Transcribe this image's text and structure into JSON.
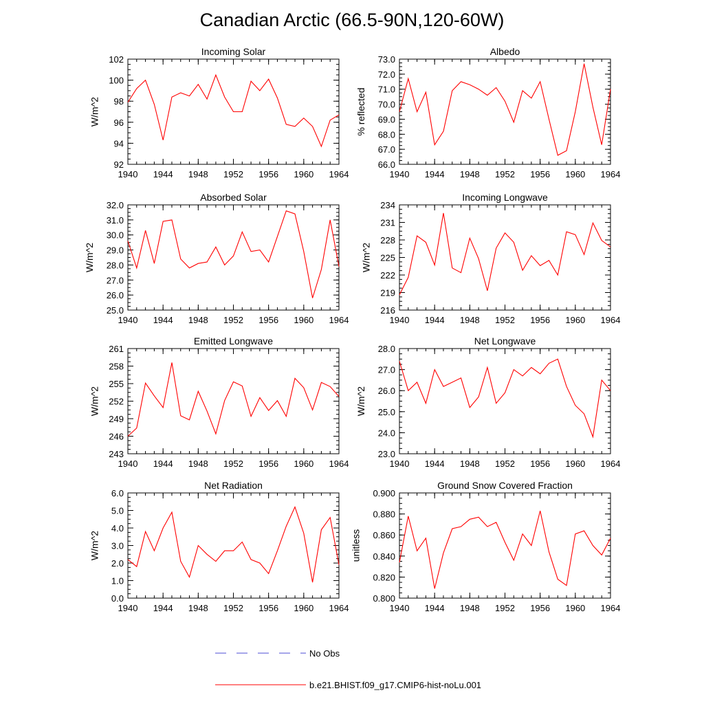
{
  "figure": {
    "title": "Canadian Arctic (66.5-90N,120-60W)"
  },
  "legend": [
    {
      "label": "No Obs",
      "color": "#4b4bd6",
      "style": "dashed"
    },
    {
      "label": "b.e21.BHIST.f09_g17.CMIP6-hist-noLu.001",
      "color": "#ff0000",
      "style": "solid"
    }
  ],
  "chart_data": [
    {
      "type": "line",
      "title": "Incoming Solar",
      "xlabel": "",
      "ylabel": "W/m^2",
      "xlim": [
        1940,
        1964
      ],
      "ylim": [
        92,
        102
      ],
      "xticks": [
        "1940",
        "1944",
        "1948",
        "1952",
        "1956",
        "1960",
        "1964"
      ],
      "yticks": [
        "92",
        "94",
        "96",
        "98",
        "100",
        "102"
      ],
      "series": [
        {
          "color": "#ff0000",
          "x": [
            1940,
            1941,
            1942,
            1943,
            1944,
            1945,
            1946,
            1947,
            1948,
            1949,
            1950,
            1951,
            1952,
            1953,
            1954,
            1955,
            1956,
            1957,
            1958,
            1959,
            1960,
            1961,
            1962,
            1963,
            1964
          ],
          "values": [
            97.9,
            99.2,
            100.0,
            97.7,
            94.3,
            98.4,
            98.8,
            98.5,
            99.6,
            98.2,
            100.5,
            98.4,
            97.0,
            97.0,
            99.9,
            99.0,
            100.1,
            98.3,
            95.8,
            95.6,
            96.4,
            95.6,
            93.7,
            96.2,
            96.7
          ]
        }
      ]
    },
    {
      "type": "line",
      "title": "Albedo",
      "xlabel": "",
      "ylabel": "% reflected",
      "xlim": [
        1940,
        1964
      ],
      "ylim": [
        66.0,
        73.0
      ],
      "xticks": [
        "1940",
        "1944",
        "1948",
        "1952",
        "1956",
        "1960",
        "1964"
      ],
      "yticks": [
        "66.0",
        "67.0",
        "68.0",
        "69.0",
        "70.0",
        "71.0",
        "72.0",
        "73.0"
      ],
      "series": [
        {
          "color": "#ff0000",
          "x": [
            1940,
            1941,
            1942,
            1943,
            1944,
            1945,
            1946,
            1947,
            1948,
            1949,
            1950,
            1951,
            1952,
            1953,
            1954,
            1955,
            1956,
            1957,
            1958,
            1959,
            1960,
            1961,
            1962,
            1963,
            1964
          ],
          "values": [
            69.5,
            71.7,
            69.5,
            70.8,
            67.3,
            68.2,
            70.9,
            71.5,
            71.3,
            71.0,
            70.6,
            71.1,
            70.2,
            68.8,
            70.9,
            70.4,
            71.5,
            69.0,
            66.6,
            66.9,
            69.5,
            72.7,
            69.8,
            67.3,
            71.0
          ]
        }
      ]
    },
    {
      "type": "line",
      "title": "Absorbed Solar",
      "xlabel": "",
      "ylabel": "W/m^2",
      "xlim": [
        1940,
        1964
      ],
      "ylim": [
        25.0,
        32.0
      ],
      "xticks": [
        "1940",
        "1944",
        "1948",
        "1952",
        "1956",
        "1960",
        "1964"
      ],
      "yticks": [
        "25.0",
        "26.0",
        "27.0",
        "28.0",
        "29.0",
        "30.0",
        "31.0",
        "32.0"
      ],
      "series": [
        {
          "color": "#ff0000",
          "x": [
            1940,
            1941,
            1942,
            1943,
            1944,
            1945,
            1946,
            1947,
            1948,
            1949,
            1950,
            1951,
            1952,
            1953,
            1954,
            1955,
            1956,
            1957,
            1958,
            1959,
            1960,
            1961,
            1962,
            1963,
            1964
          ],
          "values": [
            29.6,
            27.8,
            30.3,
            28.1,
            30.9,
            31.0,
            28.4,
            27.8,
            28.1,
            28.2,
            29.2,
            28.0,
            28.6,
            30.2,
            28.9,
            29.0,
            28.2,
            29.9,
            31.6,
            31.4,
            28.9,
            25.8,
            27.7,
            31.0,
            27.9
          ]
        }
      ]
    },
    {
      "type": "line",
      "title": "Incoming Longwave",
      "xlabel": "",
      "ylabel": "W/m^2",
      "xlim": [
        1940,
        1964
      ],
      "ylim": [
        216,
        234
      ],
      "xticks": [
        "1940",
        "1944",
        "1948",
        "1952",
        "1956",
        "1960",
        "1964"
      ],
      "yticks": [
        "216",
        "219",
        "222",
        "225",
        "228",
        "231",
        "234"
      ],
      "series": [
        {
          "color": "#ff0000",
          "x": [
            1940,
            1941,
            1942,
            1943,
            1944,
            1945,
            1946,
            1947,
            1948,
            1949,
            1950,
            1951,
            1952,
            1953,
            1954,
            1955,
            1956,
            1957,
            1958,
            1959,
            1960,
            1961,
            1962,
            1963,
            1964
          ],
          "values": [
            218.6,
            221.6,
            228.7,
            227.6,
            223.7,
            232.6,
            223.2,
            222.4,
            228.3,
            224.8,
            219.3,
            226.6,
            229.2,
            227.6,
            222.8,
            225.3,
            223.6,
            224.5,
            222.0,
            229.4,
            228.9,
            225.5,
            230.9,
            227.9,
            226.8
          ]
        }
      ]
    },
    {
      "type": "line",
      "title": "Emitted Longwave",
      "xlabel": "",
      "ylabel": "W/m^2",
      "xlim": [
        1940,
        1964
      ],
      "ylim": [
        243,
        261
      ],
      "xticks": [
        "1940",
        "1944",
        "1948",
        "1952",
        "1956",
        "1960",
        "1964"
      ],
      "yticks": [
        "243",
        "246",
        "249",
        "252",
        "255",
        "258",
        "261"
      ],
      "series": [
        {
          "color": "#ff0000",
          "x": [
            1940,
            1941,
            1942,
            1943,
            1944,
            1945,
            1946,
            1947,
            1948,
            1949,
            1950,
            1951,
            1952,
            1953,
            1954,
            1955,
            1956,
            1957,
            1958,
            1959,
            1960,
            1961,
            1962,
            1963,
            1964
          ],
          "values": [
            246.0,
            247.4,
            255.1,
            252.9,
            250.9,
            258.6,
            249.5,
            248.8,
            253.7,
            250.3,
            246.4,
            252.1,
            255.3,
            254.6,
            249.4,
            252.6,
            250.4,
            252.1,
            249.4,
            255.9,
            254.3,
            250.5,
            255.2,
            254.5,
            252.8
          ]
        }
      ]
    },
    {
      "type": "line",
      "title": "Net Longwave",
      "xlabel": "",
      "ylabel": "W/m^2",
      "xlim": [
        1940,
        1964
      ],
      "ylim": [
        23.0,
        28.0
      ],
      "xticks": [
        "1940",
        "1944",
        "1948",
        "1952",
        "1956",
        "1960",
        "1964"
      ],
      "yticks": [
        "23.0",
        "24.0",
        "25.0",
        "26.0",
        "27.0",
        "28.0"
      ],
      "series": [
        {
          "color": "#ff0000",
          "x": [
            1940,
            1941,
            1942,
            1943,
            1944,
            1945,
            1946,
            1947,
            1948,
            1949,
            1950,
            1951,
            1952,
            1953,
            1954,
            1955,
            1956,
            1957,
            1958,
            1959,
            1960,
            1961,
            1962,
            1963,
            1964
          ],
          "values": [
            27.4,
            26.0,
            26.4,
            25.4,
            27.0,
            26.2,
            26.4,
            26.6,
            25.2,
            25.7,
            27.1,
            25.4,
            25.9,
            27.0,
            26.7,
            27.1,
            26.8,
            27.3,
            27.5,
            26.2,
            25.3,
            24.9,
            23.8,
            26.5,
            26.0
          ]
        }
      ]
    },
    {
      "type": "line",
      "title": "Net Radiation",
      "xlabel": "",
      "ylabel": "W/m^2",
      "xlim": [
        1940,
        1964
      ],
      "ylim": [
        0.0,
        6.0
      ],
      "xticks": [
        "1940",
        "1944",
        "1948",
        "1952",
        "1956",
        "1960",
        "1964"
      ],
      "yticks": [
        "0.0",
        "1.0",
        "2.0",
        "3.0",
        "4.0",
        "5.0",
        "6.0"
      ],
      "series": [
        {
          "color": "#ff0000",
          "x": [
            1940,
            1941,
            1942,
            1943,
            1944,
            1945,
            1946,
            1947,
            1948,
            1949,
            1950,
            1951,
            1952,
            1953,
            1954,
            1955,
            1956,
            1957,
            1958,
            1959,
            1960,
            1961,
            1962,
            1963,
            1964
          ],
          "values": [
            2.2,
            1.8,
            3.8,
            2.7,
            4.0,
            4.9,
            2.1,
            1.2,
            3.0,
            2.5,
            2.1,
            2.7,
            2.7,
            3.2,
            2.2,
            2.0,
            1.4,
            2.7,
            4.1,
            5.2,
            3.7,
            0.9,
            3.9,
            4.6,
            1.9
          ]
        }
      ]
    },
    {
      "type": "line",
      "title": "Ground Snow Covered Fraction",
      "xlabel": "",
      "ylabel": "unitless",
      "xlim": [
        1940,
        1964
      ],
      "ylim": [
        0.8,
        0.9
      ],
      "xticks": [
        "1940",
        "1944",
        "1948",
        "1952",
        "1956",
        "1960",
        "1964"
      ],
      "yticks": [
        "0.800",
        "0.820",
        "0.840",
        "0.860",
        "0.880",
        "0.900"
      ],
      "series": [
        {
          "color": "#ff0000",
          "x": [
            1940,
            1941,
            1942,
            1943,
            1944,
            1945,
            1946,
            1947,
            1948,
            1949,
            1950,
            1951,
            1952,
            1953,
            1954,
            1955,
            1956,
            1957,
            1958,
            1959,
            1960,
            1961,
            1962,
            1963,
            1964
          ],
          "values": [
            0.834,
            0.878,
            0.845,
            0.857,
            0.809,
            0.843,
            0.866,
            0.868,
            0.875,
            0.877,
            0.868,
            0.872,
            0.853,
            0.836,
            0.861,
            0.85,
            0.883,
            0.844,
            0.818,
            0.812,
            0.861,
            0.864,
            0.85,
            0.841,
            0.857
          ]
        }
      ]
    }
  ]
}
